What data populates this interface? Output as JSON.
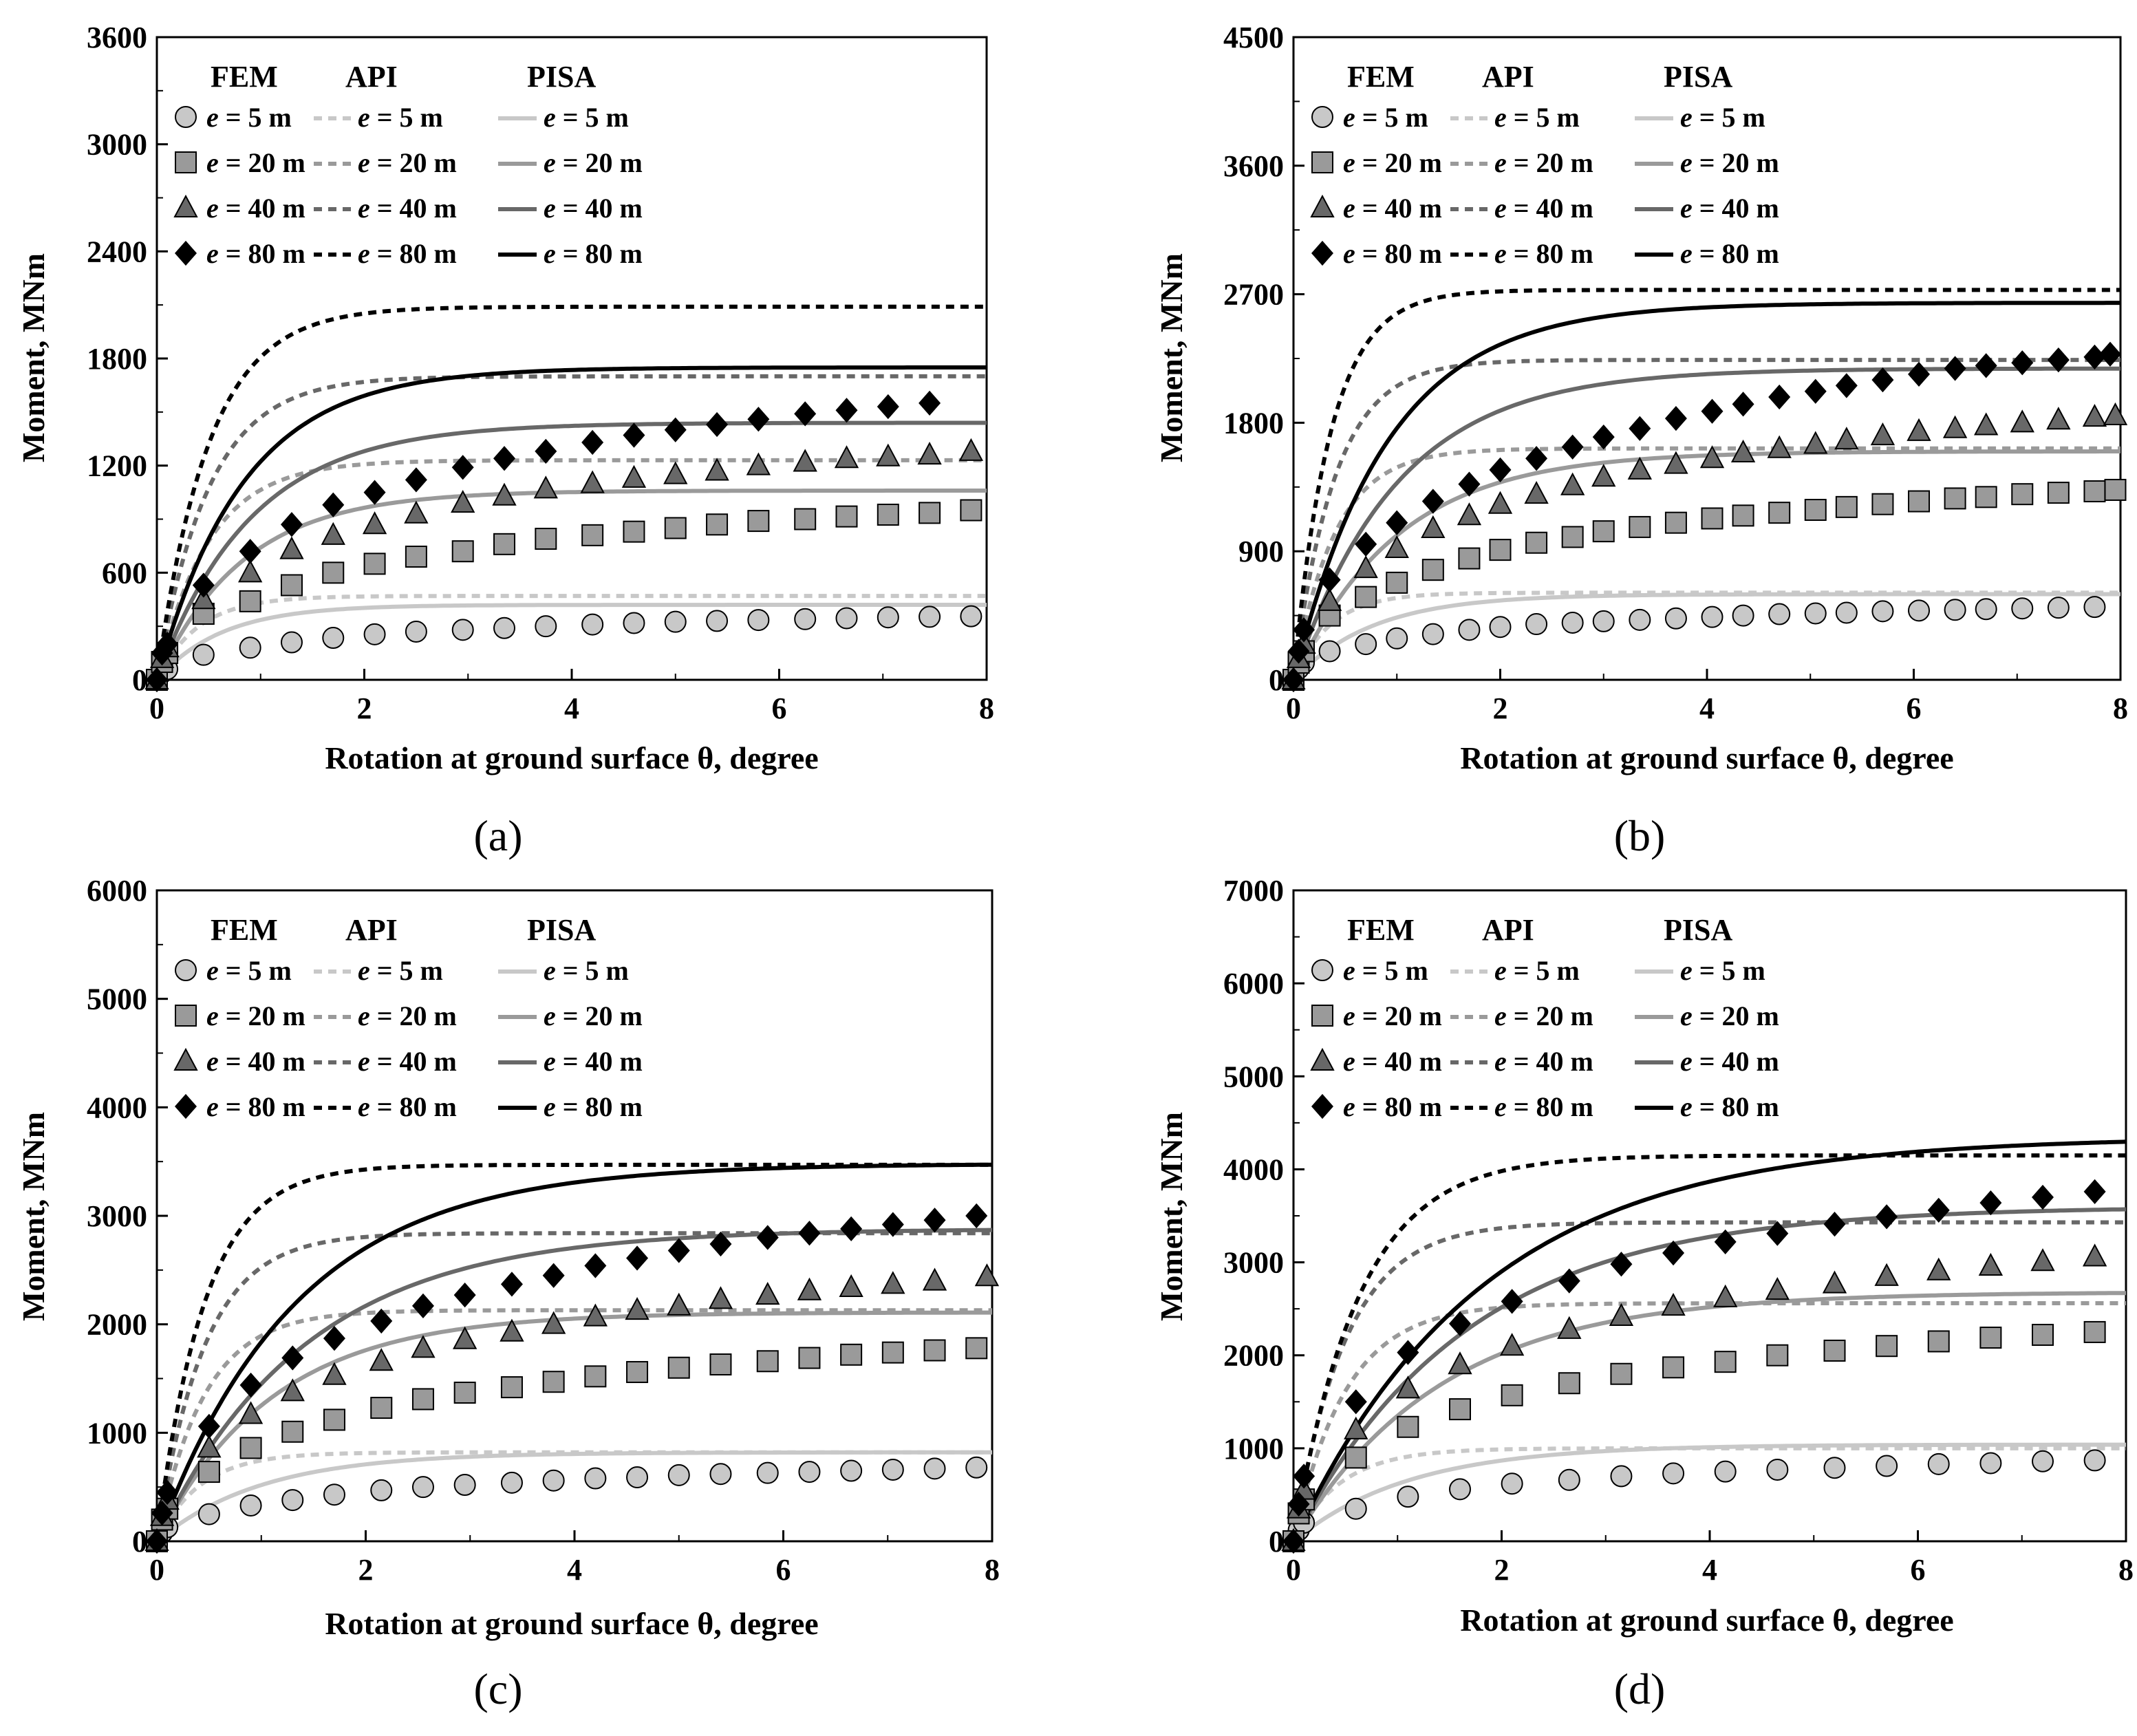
{
  "figure": {
    "legend_headers": [
      "FEM",
      "API",
      "PISA"
    ],
    "legend_labels": [
      "e = 5 m",
      "e = 20 m",
      "e = 40 m",
      "e = 80 m"
    ],
    "colors": {
      "e5": "#c8c8c8",
      "e20": "#9a9a9a",
      "e40": "#686868",
      "e80": "#000000"
    },
    "markers": [
      "circle",
      "square",
      "triangle",
      "diamond"
    ]
  },
  "chart_data": [
    {
      "type": "line",
      "panel_label": "(a)",
      "xlabel": "Rotation at ground surface θ, degree",
      "ylabel": "Moment, MNm",
      "xlim": [
        0,
        8
      ],
      "ylim": [
        0,
        3600
      ],
      "xticks": [
        0,
        2,
        4,
        6,
        8
      ],
      "yticks": [
        0,
        600,
        1200,
        1800,
        2400,
        3000,
        3600
      ],
      "grid": false,
      "legend_position": "top-left",
      "fem": [
        {
          "name": "e = 5 m",
          "x": [
            0.0,
            0.05,
            0.1,
            0.45,
            0.9,
            1.3,
            1.7,
            2.1,
            2.5,
            2.95,
            3.35,
            3.75,
            4.2,
            4.6,
            5.0,
            5.4,
            5.8,
            6.25,
            6.65,
            7.05,
            7.45,
            7.85
          ],
          "y": [
            0,
            40,
            60,
            140,
            180,
            210,
            235,
            255,
            270,
            280,
            290,
            300,
            310,
            318,
            325,
            330,
            335,
            340,
            345,
            350,
            353,
            356
          ]
        },
        {
          "name": "e = 20 m",
          "x": [
            0.0,
            0.05,
            0.1,
            0.45,
            0.9,
            1.3,
            1.7,
            2.1,
            2.5,
            2.95,
            3.35,
            3.75,
            4.2,
            4.6,
            5.0,
            5.4,
            5.8,
            6.25,
            6.65,
            7.05,
            7.45,
            7.85
          ],
          "y": [
            0,
            100,
            150,
            370,
            440,
            530,
            600,
            650,
            690,
            720,
            760,
            790,
            810,
            830,
            850,
            870,
            890,
            900,
            915,
            925,
            935,
            950
          ]
        },
        {
          "name": "e = 40 m",
          "x": [
            0.0,
            0.05,
            0.1,
            0.45,
            0.9,
            1.3,
            1.7,
            2.1,
            2.5,
            2.95,
            3.35,
            3.75,
            4.2,
            4.6,
            5.0,
            5.4,
            5.8,
            6.25,
            6.65,
            7.05,
            7.45,
            7.85
          ],
          "y": [
            0,
            120,
            180,
            450,
            600,
            730,
            810,
            870,
            930,
            990,
            1030,
            1070,
            1100,
            1130,
            1150,
            1170,
            1200,
            1220,
            1240,
            1250,
            1260,
            1280
          ]
        },
        {
          "name": "e = 80 m",
          "x": [
            0.0,
            0.05,
            0.1,
            0.45,
            0.9,
            1.3,
            1.7,
            2.1,
            2.5,
            2.95,
            3.35,
            3.75,
            4.2,
            4.6,
            5.0,
            5.4,
            5.8,
            6.25,
            6.65,
            7.05,
            7.45
          ],
          "y": [
            0,
            150,
            200,
            530,
            720,
            870,
            980,
            1050,
            1120,
            1190,
            1240,
            1280,
            1330,
            1370,
            1400,
            1430,
            1460,
            1490,
            1510,
            1530,
            1550
          ]
        }
      ],
      "api": [
        {
          "name": "e = 5 m",
          "plateau": 470,
          "k": 2.5
        },
        {
          "name": "e = 20 m",
          "plateau": 1230,
          "k": 2.0
        },
        {
          "name": "e = 40 m",
          "plateau": 1700,
          "k": 2.0
        },
        {
          "name": "e = 80 m",
          "plateau": 2090,
          "k": 2.0
        }
      ],
      "pisa": [
        {
          "name": "e = 5 m",
          "plateau": 420,
          "k": 1.6
        },
        {
          "name": "e = 20 m",
          "plateau": 1060,
          "k": 1.2
        },
        {
          "name": "e = 40 m",
          "plateau": 1440,
          "k": 1.1
        },
        {
          "name": "e = 80 m",
          "plateau": 1750,
          "k": 1.2
        }
      ]
    },
    {
      "type": "line",
      "panel_label": "(b)",
      "xlabel": "Rotation at ground surface θ, degree",
      "ylabel": "Moment, MNm",
      "xlim": [
        0,
        8
      ],
      "ylim": [
        0,
        4500
      ],
      "xticks": [
        0,
        2,
        4,
        6,
        8
      ],
      "yticks": [
        0,
        900,
        1800,
        2700,
        3600,
        4500
      ],
      "grid": false,
      "legend_position": "top-left",
      "fem": [
        {
          "name": "e = 5 m",
          "x": [
            0.0,
            0.05,
            0.1,
            0.35,
            0.7,
            1.0,
            1.35,
            1.7,
            2.0,
            2.35,
            2.7,
            3.0,
            3.35,
            3.7,
            4.05,
            4.35,
            4.7,
            5.05,
            5.35,
            5.7,
            6.05,
            6.4,
            6.7,
            7.05,
            7.4,
            7.75
          ],
          "y": [
            0,
            80,
            120,
            200,
            250,
            290,
            320,
            350,
            370,
            390,
            400,
            410,
            420,
            430,
            440,
            450,
            460,
            465,
            470,
            480,
            485,
            490,
            495,
            500,
            505,
            510
          ]
        },
        {
          "name": "e = 20 m",
          "x": [
            0.0,
            0.05,
            0.1,
            0.35,
            0.7,
            1.0,
            1.35,
            1.7,
            2.0,
            2.35,
            2.7,
            3.0,
            3.35,
            3.7,
            4.05,
            4.35,
            4.7,
            5.05,
            5.35,
            5.7,
            6.05,
            6.4,
            6.7,
            7.05,
            7.4,
            7.75,
            7.95
          ],
          "y": [
            0,
            120,
            200,
            450,
            580,
            680,
            770,
            850,
            910,
            960,
            1000,
            1040,
            1070,
            1100,
            1130,
            1150,
            1170,
            1190,
            1210,
            1230,
            1250,
            1270,
            1280,
            1300,
            1310,
            1320,
            1330
          ]
        },
        {
          "name": "e = 40 m",
          "x": [
            0.0,
            0.05,
            0.1,
            0.35,
            0.7,
            1.0,
            1.35,
            1.7,
            2.0,
            2.35,
            2.7,
            3.0,
            3.35,
            3.7,
            4.05,
            4.35,
            4.7,
            5.05,
            5.35,
            5.7,
            6.05,
            6.4,
            6.7,
            7.05,
            7.4,
            7.75,
            7.95
          ],
          "y": [
            0,
            150,
            250,
            550,
            780,
            920,
            1060,
            1150,
            1230,
            1300,
            1360,
            1420,
            1470,
            1510,
            1550,
            1590,
            1620,
            1650,
            1680,
            1710,
            1740,
            1760,
            1780,
            1800,
            1820,
            1840,
            1850
          ]
        },
        {
          "name": "e = 80 m",
          "x": [
            0.0,
            0.05,
            0.1,
            0.35,
            0.7,
            1.0,
            1.35,
            1.7,
            2.0,
            2.35,
            2.7,
            3.0,
            3.35,
            3.7,
            4.05,
            4.35,
            4.7,
            5.05,
            5.35,
            5.7,
            6.05,
            6.4,
            6.7,
            7.05,
            7.4,
            7.75,
            7.9
          ],
          "y": [
            0,
            200,
            350,
            700,
            950,
            1100,
            1250,
            1370,
            1470,
            1550,
            1630,
            1700,
            1760,
            1830,
            1880,
            1930,
            1980,
            2020,
            2060,
            2100,
            2140,
            2180,
            2200,
            2220,
            2240,
            2260,
            2280
          ]
        }
      ],
      "api": [
        {
          "name": "e = 5 m",
          "plateau": 610,
          "k": 2.8
        },
        {
          "name": "e = 20 m",
          "plateau": 1620,
          "k": 2.5
        },
        {
          "name": "e = 40 m",
          "plateau": 2240,
          "k": 2.5
        },
        {
          "name": "e = 80 m",
          "plateau": 2730,
          "k": 2.8
        }
      ],
      "pisa": [
        {
          "name": "e = 5 m",
          "plateau": 600,
          "k": 1.3
        },
        {
          "name": "e = 20 m",
          "plateau": 1600,
          "k": 1.0
        },
        {
          "name": "e = 40 m",
          "plateau": 2180,
          "k": 1.0
        },
        {
          "name": "e = 80 m",
          "plateau": 2640,
          "k": 1.1
        }
      ]
    },
    {
      "type": "line",
      "panel_label": "(c)",
      "xlabel": "Rotation at ground surface θ, degree",
      "ylabel": "Moment, MNm",
      "xlim": [
        0,
        8
      ],
      "ylim": [
        0,
        6000
      ],
      "xticks": [
        0,
        2,
        4,
        6,
        8
      ],
      "yticks": [
        0,
        1000,
        2000,
        3000,
        4000,
        5000,
        6000
      ],
      "grid": false,
      "legend_position": "top-left",
      "fem": [
        {
          "name": "e = 5 m",
          "x": [
            0.0,
            0.05,
            0.1,
            0.5,
            0.9,
            1.3,
            1.7,
            2.15,
            2.55,
            2.95,
            3.4,
            3.8,
            4.2,
            4.6,
            5.0,
            5.4,
            5.85,
            6.25,
            6.65,
            7.05,
            7.45,
            7.85
          ],
          "y": [
            0,
            80,
            130,
            250,
            330,
            380,
            430,
            470,
            500,
            520,
            540,
            560,
            580,
            590,
            610,
            620,
            630,
            640,
            650,
            660,
            670,
            680
          ]
        },
        {
          "name": "e = 20 m",
          "x": [
            0.0,
            0.05,
            0.1,
            0.5,
            0.9,
            1.3,
            1.7,
            2.15,
            2.55,
            2.95,
            3.4,
            3.8,
            4.2,
            4.6,
            5.0,
            5.4,
            5.85,
            6.25,
            6.65,
            7.05,
            7.45,
            7.85
          ],
          "y": [
            0,
            200,
            300,
            640,
            860,
            1010,
            1120,
            1230,
            1310,
            1370,
            1420,
            1470,
            1520,
            1560,
            1600,
            1630,
            1660,
            1690,
            1720,
            1740,
            1760,
            1780
          ]
        },
        {
          "name": "e = 40 m",
          "x": [
            0.0,
            0.05,
            0.1,
            0.5,
            0.9,
            1.3,
            1.7,
            2.15,
            2.55,
            2.95,
            3.4,
            3.8,
            4.2,
            4.6,
            5.0,
            5.4,
            5.85,
            6.25,
            6.65,
            7.05,
            7.45,
            7.95
          ],
          "y": [
            0,
            230,
            380,
            860,
            1170,
            1380,
            1530,
            1660,
            1780,
            1860,
            1930,
            2000,
            2070,
            2130,
            2170,
            2230,
            2270,
            2310,
            2340,
            2370,
            2400,
            2440
          ]
        },
        {
          "name": "e = 80 m",
          "x": [
            0.0,
            0.05,
            0.1,
            0.5,
            0.9,
            1.3,
            1.7,
            2.15,
            2.55,
            2.95,
            3.4,
            3.8,
            4.2,
            4.6,
            5.0,
            5.4,
            5.85,
            6.25,
            6.65,
            7.05,
            7.45,
            7.85
          ],
          "y": [
            0,
            260,
            450,
            1060,
            1440,
            1690,
            1870,
            2030,
            2170,
            2270,
            2370,
            2450,
            2540,
            2610,
            2680,
            2740,
            2800,
            2840,
            2880,
            2920,
            2960,
            3000
          ]
        }
      ],
      "api": [
        {
          "name": "e = 5 m",
          "plateau": 820,
          "k": 2.4
        },
        {
          "name": "e = 20 m",
          "plateau": 2130,
          "k": 2.2
        },
        {
          "name": "e = 40 m",
          "plateau": 2840,
          "k": 2.2
        },
        {
          "name": "e = 80 m",
          "plateau": 3470,
          "k": 2.2
        }
      ],
      "pisa": [
        {
          "name": "e = 5 m",
          "plateau": 820,
          "k": 1.0
        },
        {
          "name": "e = 20 m",
          "plateau": 2110,
          "k": 0.9
        },
        {
          "name": "e = 40 m",
          "plateau": 2880,
          "k": 0.7
        },
        {
          "name": "e = 80 m",
          "plateau": 3480,
          "k": 0.75
        }
      ]
    },
    {
      "type": "line",
      "panel_label": "(d)",
      "xlabel": "Rotation at ground surface θ, degree",
      "ylabel": "Moment, MNm",
      "xlim": [
        0,
        8
      ],
      "ylim": [
        0,
        7000
      ],
      "xticks": [
        0,
        2,
        4,
        6,
        8
      ],
      "yticks": [
        0,
        1000,
        2000,
        3000,
        4000,
        5000,
        6000,
        7000
      ],
      "grid": false,
      "legend_position": "top-left",
      "fem": [
        {
          "name": "e = 5 m",
          "x": [
            0.0,
            0.05,
            0.1,
            0.6,
            1.1,
            1.6,
            2.1,
            2.65,
            3.15,
            3.65,
            4.15,
            4.65,
            5.2,
            5.7,
            6.2,
            6.7,
            7.2,
            7.7
          ],
          "y": [
            0,
            120,
            200,
            350,
            480,
            560,
            620,
            660,
            700,
            730,
            750,
            770,
            790,
            810,
            830,
            840,
            860,
            870
          ]
        },
        {
          "name": "e = 20 m",
          "x": [
            0.0,
            0.05,
            0.1,
            0.6,
            1.1,
            1.6,
            2.1,
            2.65,
            3.15,
            3.65,
            4.15,
            4.65,
            5.2,
            5.7,
            6.2,
            6.7,
            7.2,
            7.7
          ],
          "y": [
            0,
            300,
            450,
            900,
            1230,
            1420,
            1570,
            1700,
            1800,
            1870,
            1930,
            2000,
            2050,
            2100,
            2150,
            2190,
            2220,
            2250
          ]
        },
        {
          "name": "e = 40 m",
          "x": [
            0.0,
            0.05,
            0.1,
            0.6,
            1.1,
            1.6,
            2.1,
            2.65,
            3.15,
            3.65,
            4.15,
            4.65,
            5.2,
            5.7,
            6.2,
            6.7,
            7.2,
            7.7
          ],
          "y": [
            0,
            350,
            550,
            1200,
            1640,
            1900,
            2100,
            2280,
            2420,
            2530,
            2620,
            2700,
            2770,
            2850,
            2910,
            2960,
            3010,
            3060
          ]
        },
        {
          "name": "e = 80 m",
          "x": [
            0.0,
            0.05,
            0.1,
            0.6,
            1.1,
            1.6,
            2.1,
            2.65,
            3.15,
            3.65,
            4.15,
            4.65,
            5.2,
            5.7,
            6.2,
            6.7,
            7.2,
            7.7
          ],
          "y": [
            0,
            400,
            700,
            1500,
            2030,
            2340,
            2580,
            2800,
            2980,
            3100,
            3220,
            3310,
            3410,
            3490,
            3560,
            3640,
            3700,
            3760
          ]
        }
      ],
      "api": [
        {
          "name": "e = 5 m",
          "plateau": 1000,
          "k": 2.2
        },
        {
          "name": "e = 20 m",
          "plateau": 2560,
          "k": 2.0
        },
        {
          "name": "e = 40 m",
          "plateau": 3430,
          "k": 2.0
        },
        {
          "name": "e = 80 m",
          "plateau": 4150,
          "k": 1.6
        }
      ],
      "pisa": [
        {
          "name": "e = 5 m",
          "plateau": 1040,
          "k": 0.9
        },
        {
          "name": "e = 20 m",
          "plateau": 2680,
          "k": 0.7
        },
        {
          "name": "e = 40 m",
          "plateau": 3600,
          "k": 0.6
        },
        {
          "name": "e = 80 m",
          "plateau": 4350,
          "k": 0.55
        }
      ]
    }
  ]
}
